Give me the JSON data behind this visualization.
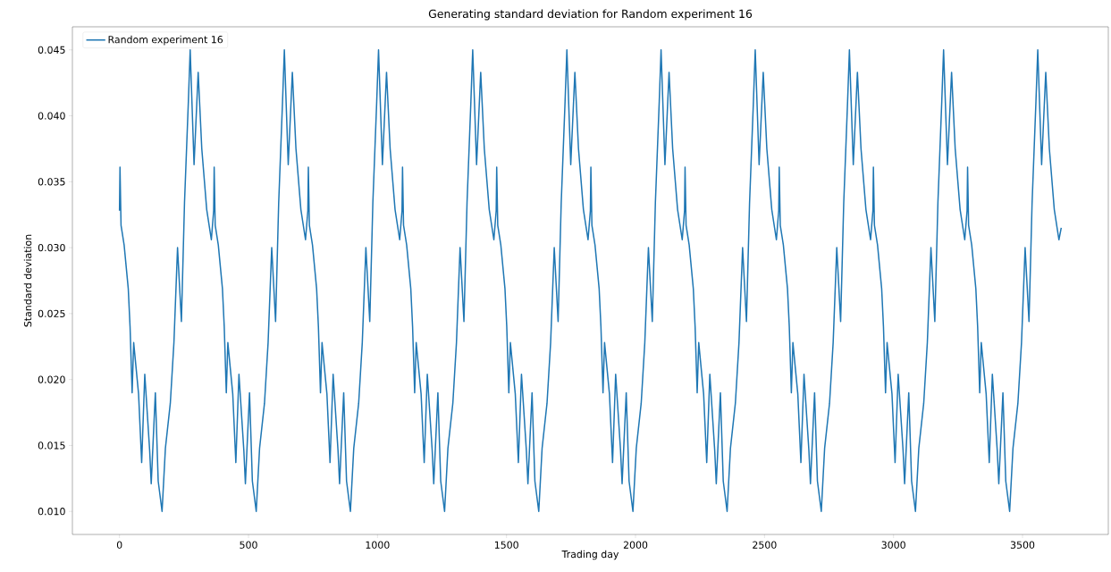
{
  "chart_data": {
    "type": "line",
    "title": "Generating standard deviation for Random experiment 16",
    "xlabel": "Trading day",
    "ylabel": "Standard deviation",
    "x": [
      0,
      2,
      6,
      18,
      34,
      41,
      49,
      55,
      74,
      86,
      98,
      117,
      123,
      139,
      150,
      165,
      178,
      197,
      211,
      225,
      240,
      252,
      267,
      274,
      289,
      305,
      319,
      338,
      356,
      365,
      367,
      371,
      383,
      399,
      406,
      414,
      420,
      439,
      451,
      463,
      482,
      488,
      504,
      515,
      530,
      543,
      562,
      576,
      590,
      605,
      617,
      632,
      639,
      654,
      670,
      684,
      703,
      721,
      730,
      732,
      736,
      748,
      764,
      771,
      779,
      785,
      804,
      816,
      828,
      847,
      853,
      869,
      880,
      895,
      908,
      927,
      941,
      955,
      970,
      982,
      997,
      1004,
      1019,
      1035,
      1049,
      1068,
      1086,
      1095,
      1097,
      1101,
      1113,
      1129,
      1136,
      1144,
      1150,
      1169,
      1181,
      1193,
      1212,
      1218,
      1234,
      1245,
      1260,
      1273,
      1292,
      1306,
      1320,
      1335,
      1347,
      1362,
      1369,
      1384,
      1400,
      1414,
      1433,
      1451,
      1460,
      1462,
      1466,
      1478,
      1494,
      1501,
      1509,
      1515,
      1534,
      1546,
      1558,
      1577,
      1583,
      1599,
      1610,
      1625,
      1638,
      1657,
      1671,
      1685,
      1700,
      1712,
      1727,
      1734,
      1749,
      1765,
      1779,
      1798,
      1816,
      1825,
      1827,
      1831,
      1843,
      1859,
      1866,
      1874,
      1880,
      1899,
      1911,
      1923,
      1942,
      1948,
      1964,
      1975,
      1990,
      2003,
      2022,
      2036,
      2050,
      2065,
      2077,
      2092,
      2099,
      2114,
      2130,
      2144,
      2163,
      2181,
      2190,
      2192,
      2196,
      2208,
      2224,
      2231,
      2239,
      2245,
      2264,
      2276,
      2288,
      2307,
      2313,
      2329,
      2340,
      2355,
      2368,
      2387,
      2401,
      2415,
      2430,
      2442,
      2457,
      2464,
      2479,
      2495,
      2509,
      2528,
      2546,
      2555,
      2557,
      2561,
      2573,
      2589,
      2596,
      2604,
      2610,
      2629,
      2641,
      2653,
      2672,
      2678,
      2694,
      2705,
      2720,
      2733,
      2752,
      2766,
      2780,
      2795,
      2807,
      2822,
      2829,
      2844,
      2860,
      2874,
      2893,
      2911,
      2920,
      2922,
      2926,
      2938,
      2954,
      2961,
      2969,
      2975,
      2994,
      3006,
      3018,
      3037,
      3043,
      3059,
      3070,
      3085,
      3098,
      3117,
      3131,
      3145,
      3160,
      3172,
      3187,
      3194,
      3209,
      3225,
      3239,
      3258,
      3276,
      3285,
      3287,
      3291,
      3303,
      3319,
      3326,
      3334,
      3340,
      3359,
      3371,
      3383,
      3402,
      3408,
      3424,
      3435,
      3450,
      3463,
      3482,
      3496,
      3510,
      3525,
      3537,
      3552,
      3559,
      3574,
      3590,
      3604,
      3623,
      3641,
      3650
    ],
    "series": [
      {
        "name": "Random experiment 16",
        "color": "#1f77b4",
        "values": [
          0.0328,
          0.0361,
          0.0317,
          0.0302,
          0.0269,
          0.024,
          0.019,
          0.0228,
          0.0189,
          0.0137,
          0.0204,
          0.0146,
          0.0121,
          0.019,
          0.0123,
          0.01,
          0.0148,
          0.0182,
          0.0228,
          0.03,
          0.0244,
          0.0334,
          0.0411,
          0.045,
          0.0363,
          0.0433,
          0.0375,
          0.0329,
          0.0306,
          0.0328,
          0.0361,
          0.0317,
          0.0302,
          0.0269,
          0.024,
          0.019,
          0.0228,
          0.0189,
          0.0137,
          0.0204,
          0.0146,
          0.0121,
          0.019,
          0.0123,
          0.01,
          0.0148,
          0.0182,
          0.0228,
          0.03,
          0.0244,
          0.0334,
          0.0411,
          0.045,
          0.0363,
          0.0433,
          0.0375,
          0.0329,
          0.0306,
          0.0328,
          0.0361,
          0.0317,
          0.0302,
          0.0269,
          0.024,
          0.019,
          0.0228,
          0.0189,
          0.0137,
          0.0204,
          0.0146,
          0.0121,
          0.019,
          0.0123,
          0.01,
          0.0148,
          0.0182,
          0.0228,
          0.03,
          0.0244,
          0.0334,
          0.0411,
          0.045,
          0.0363,
          0.0433,
          0.0375,
          0.0329,
          0.0306,
          0.0328,
          0.0361,
          0.0317,
          0.0302,
          0.0269,
          0.024,
          0.019,
          0.0228,
          0.0189,
          0.0137,
          0.0204,
          0.0146,
          0.0121,
          0.019,
          0.0123,
          0.01,
          0.0148,
          0.0182,
          0.0228,
          0.03,
          0.0244,
          0.0334,
          0.0411,
          0.045,
          0.0363,
          0.0433,
          0.0375,
          0.0329,
          0.0306,
          0.0328,
          0.0361,
          0.0317,
          0.0302,
          0.0269,
          0.024,
          0.019,
          0.0228,
          0.0189,
          0.0137,
          0.0204,
          0.0146,
          0.0121,
          0.019,
          0.0123,
          0.01,
          0.0148,
          0.0182,
          0.0228,
          0.03,
          0.0244,
          0.0334,
          0.0411,
          0.045,
          0.0363,
          0.0433,
          0.0375,
          0.0329,
          0.0306,
          0.0328,
          0.0361,
          0.0317,
          0.0302,
          0.0269,
          0.024,
          0.019,
          0.0228,
          0.0189,
          0.0137,
          0.0204,
          0.0146,
          0.0121,
          0.019,
          0.0123,
          0.01,
          0.0148,
          0.0182,
          0.0228,
          0.03,
          0.0244,
          0.0334,
          0.0411,
          0.045,
          0.0363,
          0.0433,
          0.0375,
          0.0329,
          0.0306,
          0.0328,
          0.0361,
          0.0317,
          0.0302,
          0.0269,
          0.024,
          0.019,
          0.0228,
          0.0189,
          0.0137,
          0.0204,
          0.0146,
          0.0121,
          0.019,
          0.0123,
          0.01,
          0.0148,
          0.0182,
          0.0228,
          0.03,
          0.0244,
          0.0334,
          0.0411,
          0.045,
          0.0363,
          0.0433,
          0.0375,
          0.0329,
          0.0306,
          0.0328,
          0.0361,
          0.0317,
          0.0302,
          0.0269,
          0.024,
          0.019,
          0.0228,
          0.0189,
          0.0137,
          0.0204,
          0.0146,
          0.0121,
          0.019,
          0.0123,
          0.01,
          0.0148,
          0.0182,
          0.0228,
          0.03,
          0.0244,
          0.0334,
          0.0411,
          0.045,
          0.0363,
          0.0433,
          0.0375,
          0.0329,
          0.0306,
          0.0328,
          0.0361,
          0.0317,
          0.0302,
          0.0269,
          0.024,
          0.019,
          0.0228,
          0.0189,
          0.0137,
          0.0204,
          0.0146,
          0.0121,
          0.019,
          0.0123,
          0.01,
          0.0148,
          0.0182,
          0.0228,
          0.03,
          0.0244,
          0.0334,
          0.0411,
          0.045,
          0.0363,
          0.0433,
          0.0375,
          0.0329,
          0.0306,
          0.0328,
          0.0361,
          0.0317,
          0.0302,
          0.0269,
          0.024,
          0.019,
          0.0228,
          0.0189,
          0.0137,
          0.0204,
          0.0146,
          0.0121,
          0.019,
          0.0123,
          0.01,
          0.0148,
          0.0182,
          0.0228,
          0.03,
          0.0244,
          0.0334,
          0.0411,
          0.045,
          0.0363,
          0.0433,
          0.0375,
          0.0329,
          0.0306,
          0.0315
        ]
      }
    ],
    "xlim": [
      -182.5,
      3832.5
    ],
    "ylim": [
      0.00825,
      0.04675
    ],
    "xticks": [
      0,
      500,
      1000,
      1500,
      2000,
      2500,
      3000,
      3500
    ],
    "yticks": [
      {
        "value": 0.01,
        "label": "0.010"
      },
      {
        "value": 0.015,
        "label": "0.015"
      },
      {
        "value": 0.02,
        "label": "0.020"
      },
      {
        "value": 0.025,
        "label": "0.025"
      },
      {
        "value": 0.03,
        "label": "0.030"
      },
      {
        "value": 0.035,
        "label": "0.035"
      },
      {
        "value": 0.04,
        "label": "0.040"
      },
      {
        "value": 0.045,
        "label": "0.045"
      }
    ],
    "legend": "top left",
    "grid": false
  }
}
